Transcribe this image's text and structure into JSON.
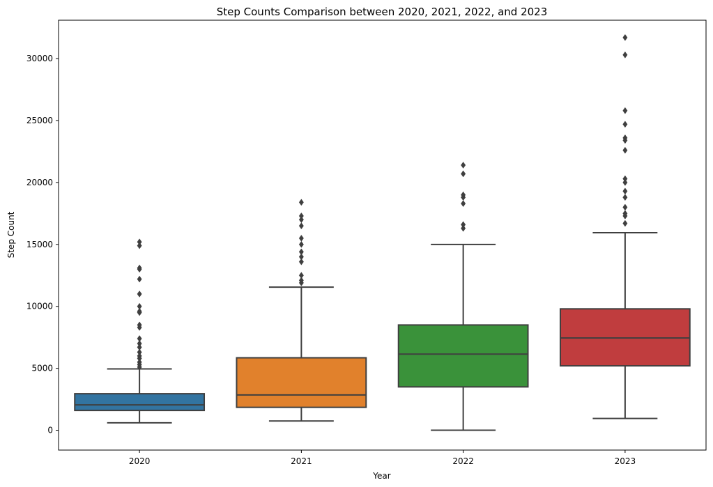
{
  "chart_data": {
    "type": "box",
    "title": "Step Counts Comparison between 2020, 2021, 2022, and 2023",
    "xlabel": "Year",
    "ylabel": "Step Count",
    "ylim": [
      -1600,
      33100
    ],
    "yticks": [
      0,
      5000,
      10000,
      15000,
      20000,
      25000,
      30000
    ],
    "categories": [
      "2020",
      "2021",
      "2022",
      "2023"
    ],
    "colors": [
      "#3274a1",
      "#e1812c",
      "#3a923a",
      "#c03d3e"
    ],
    "boxes": [
      {
        "name": "2020",
        "whisker_low": 600,
        "q1": 1600,
        "median": 2050,
        "q3": 2950,
        "whisker_high": 4950,
        "outliers": [
          15200,
          14900,
          13100,
          13000,
          12200,
          11000,
          10000,
          9600,
          9500,
          8500,
          8300,
          7400,
          7000,
          6700,
          6300,
          6000,
          5800,
          5500,
          5300,
          5100
        ]
      },
      {
        "name": "2021",
        "whisker_low": 750,
        "q1": 1850,
        "median": 2850,
        "q3": 5850,
        "whisker_high": 11550,
        "outliers": [
          18400,
          17300,
          17000,
          16500,
          15500,
          15000,
          14400,
          14000,
          13600,
          12500,
          12100,
          11900
        ]
      },
      {
        "name": "2022",
        "whisker_low": 0,
        "q1": 3500,
        "median": 6150,
        "q3": 8500,
        "whisker_high": 15000,
        "outliers": [
          21400,
          20700,
          19000,
          18800,
          18300,
          16600,
          16300
        ]
      },
      {
        "name": "2023",
        "whisker_low": 950,
        "q1": 5200,
        "median": 7450,
        "q3": 9800,
        "whisker_high": 15950,
        "outliers": [
          31700,
          30300,
          25800,
          24700,
          23600,
          23400,
          22600,
          20300,
          20000,
          19300,
          18800,
          18000,
          17500,
          17300,
          16700
        ]
      }
    ]
  }
}
